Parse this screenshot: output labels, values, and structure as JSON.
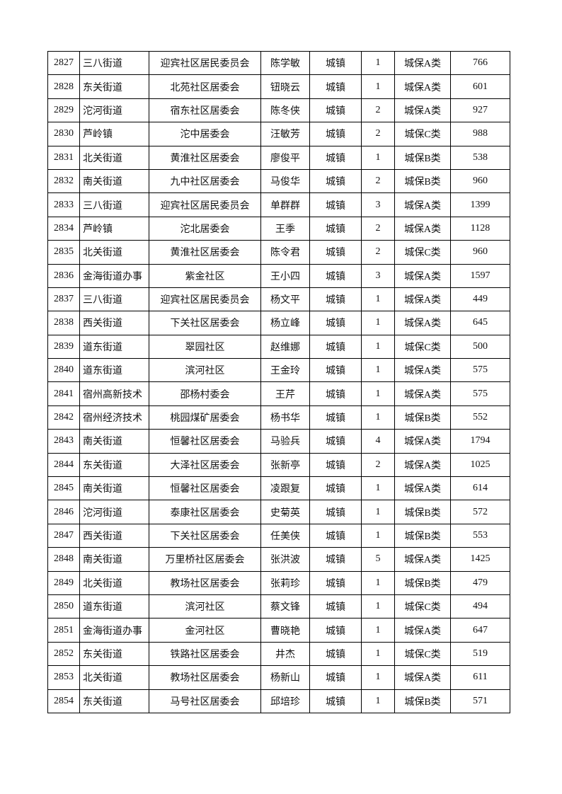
{
  "table": {
    "rows": [
      [
        2827,
        "三八街道",
        "迎宾社区居民委员会",
        "陈学敏",
        "城镇",
        1,
        "城保A类",
        766
      ],
      [
        2828,
        "东关街道",
        "北苑社区居委会",
        "钮晓云",
        "城镇",
        1,
        "城保A类",
        601
      ],
      [
        2829,
        "沱河街道",
        "宿东社区居委会",
        "陈冬侠",
        "城镇",
        2,
        "城保A类",
        927
      ],
      [
        2830,
        "芦岭镇",
        "沱中居委会",
        "汪敏芳",
        "城镇",
        2,
        "城保C类",
        988
      ],
      [
        2831,
        "北关街道",
        "黄淮社区居委会",
        "廖俊平",
        "城镇",
        1,
        "城保B类",
        538
      ],
      [
        2832,
        "南关街道",
        "九中社区居委会",
        "马俊华",
        "城镇",
        2,
        "城保B类",
        960
      ],
      [
        2833,
        "三八街道",
        "迎宾社区居民委员会",
        "单群群",
        "城镇",
        3,
        "城保A类",
        1399
      ],
      [
        2834,
        "芦岭镇",
        "沱北居委会",
        "王季",
        "城镇",
        2,
        "城保A类",
        1128
      ],
      [
        2835,
        "北关街道",
        "黄淮社区居委会",
        "陈令君",
        "城镇",
        2,
        "城保C类",
        960
      ],
      [
        2836,
        "金海街道办事",
        "紫金社区",
        "王小四",
        "城镇",
        3,
        "城保A类",
        1597
      ],
      [
        2837,
        "三八街道",
        "迎宾社区居民委员会",
        "杨文平",
        "城镇",
        1,
        "城保A类",
        449
      ],
      [
        2838,
        "西关街道",
        "下关社区居委会",
        "杨立峰",
        "城镇",
        1,
        "城保A类",
        645
      ],
      [
        2839,
        "道东街道",
        "翠园社区",
        "赵维娜",
        "城镇",
        1,
        "城保C类",
        500
      ],
      [
        2840,
        "道东街道",
        "滨河社区",
        "王金玲",
        "城镇",
        1,
        "城保A类",
        575
      ],
      [
        2841,
        "宿州高新技术",
        "邵杨村委会",
        "王芹",
        "城镇",
        1,
        "城保A类",
        575
      ],
      [
        2842,
        "宿州经济技术",
        "桃园煤矿居委会",
        "杨书华",
        "城镇",
        1,
        "城保B类",
        552
      ],
      [
        2843,
        "南关街道",
        "恒馨社区居委会",
        "马验兵",
        "城镇",
        4,
        "城保A类",
        1794
      ],
      [
        2844,
        "东关街道",
        "大泽社区居委会",
        "张新亭",
        "城镇",
        2,
        "城保A类",
        1025
      ],
      [
        2845,
        "南关街道",
        "恒馨社区居委会",
        "凌跟复",
        "城镇",
        1,
        "城保A类",
        614
      ],
      [
        2846,
        "沱河街道",
        "泰康社区居委会",
        "史菊英",
        "城镇",
        1,
        "城保B类",
        572
      ],
      [
        2847,
        "西关街道",
        "下关社区居委会",
        "任美侠",
        "城镇",
        1,
        "城保B类",
        553
      ],
      [
        2848,
        "南关街道",
        "万里桥社区居委会",
        "张洪波",
        "城镇",
        5,
        "城保A类",
        1425
      ],
      [
        2849,
        "北关街道",
        "教场社区居委会",
        "张莉珍",
        "城镇",
        1,
        "城保B类",
        479
      ],
      [
        2850,
        "道东街道",
        "滨河社区",
        "蔡文锋",
        "城镇",
        1,
        "城保C类",
        494
      ],
      [
        2851,
        "金海街道办事",
        "金河社区",
        "曹晓艳",
        "城镇",
        1,
        "城保A类",
        647
      ],
      [
        2852,
        "东关街道",
        "铁路社区居委会",
        "井杰",
        "城镇",
        1,
        "城保C类",
        519
      ],
      [
        2853,
        "北关街道",
        "教场社区居委会",
        "杨新山",
        "城镇",
        1,
        "城保A类",
        611
      ],
      [
        2854,
        "东关街道",
        "马号社区居委会",
        "邱培珍",
        "城镇",
        1,
        "城保B类",
        571
      ]
    ]
  }
}
